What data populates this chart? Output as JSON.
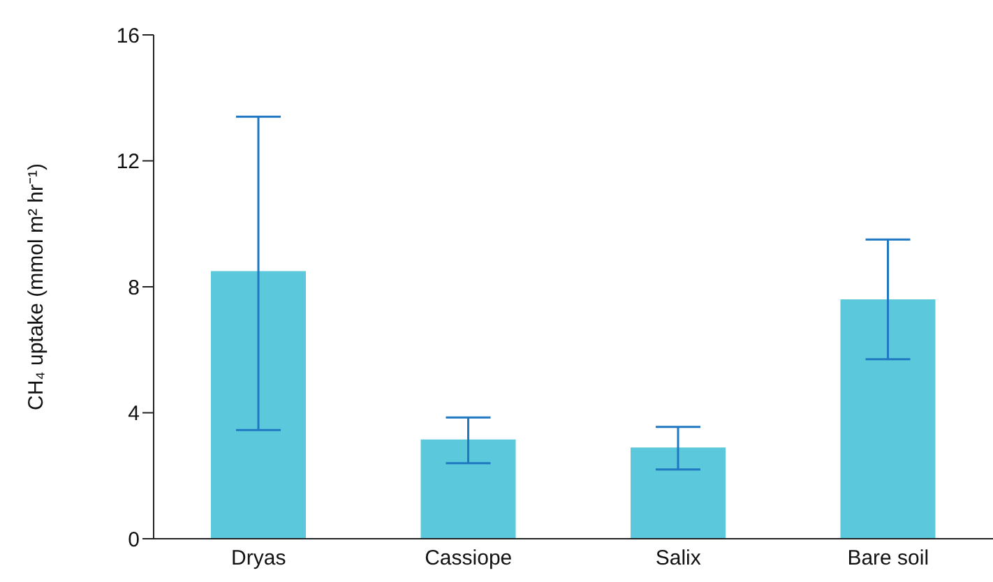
{
  "chart_data": {
    "type": "bar",
    "ylabel": "CH₄ uptake (mmol m² hr⁻¹)",
    "categories": [
      "Dryas",
      "Cassiope",
      "Salix",
      "Bare soil"
    ],
    "series": [
      {
        "color": "#5bc8dc",
        "values": [
          8.5,
          3.15,
          2.9,
          7.6
        ],
        "errors": [
          [
            3.45,
            13.4
          ],
          [
            2.4,
            3.85
          ],
          [
            2.2,
            3.55
          ],
          [
            5.7,
            9.5
          ]
        ]
      }
    ],
    "ylim": [
      0,
      16
    ],
    "yticks": [
      0,
      4,
      8,
      12,
      16
    ],
    "grid": false,
    "legend": false
  }
}
